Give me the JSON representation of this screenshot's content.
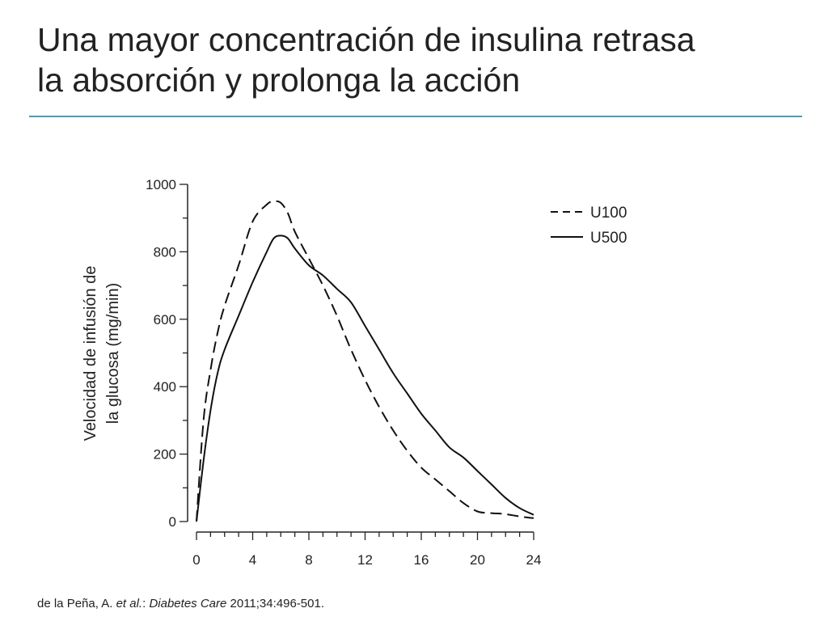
{
  "slide": {
    "title_line1": "Una mayor concentración de insulina retrasa",
    "title_line2": "la absorción y prolonga la acción",
    "accent_color": "#4e9bb2"
  },
  "citation": {
    "authors": "de la Peña, A. ",
    "etal": "et al.",
    "sep": ": ",
    "journal": "Diabetes Care",
    "details": " 2011;34:496-501."
  },
  "chart_data": {
    "type": "line",
    "title": "",
    "xlabel": "",
    "ylabel_line1": "Velocidad de infusión de",
    "ylabel_line2": "la glucosa (mg/min)",
    "xlim": [
      0,
      24
    ],
    "ylim": [
      0,
      1000
    ],
    "x_ticks": [
      0,
      4,
      8,
      12,
      16,
      20,
      24
    ],
    "y_ticks": [
      0,
      200,
      400,
      600,
      800,
      1000
    ],
    "x_minor_step": 1,
    "y_minor_step": 100,
    "grid": false,
    "legend_position": "top-right",
    "series": [
      {
        "name": "U100",
        "style": "dashed",
        "x": [
          0,
          0.5,
          1,
          1.5,
          2,
          3,
          4,
          5,
          5.5,
          6,
          6.5,
          7,
          8,
          9,
          10,
          11,
          12,
          13,
          14,
          15,
          16,
          17,
          18,
          19,
          20,
          21,
          22,
          23,
          24
        ],
        "y": [
          0,
          300,
          450,
          560,
          640,
          760,
          890,
          940,
          950,
          945,
          915,
          860,
          780,
          700,
          610,
          510,
          420,
          340,
          270,
          210,
          160,
          125,
          90,
          55,
          30,
          25,
          22,
          15,
          10
        ]
      },
      {
        "name": "U500",
        "style": "solid",
        "x": [
          0,
          0.5,
          1,
          1.5,
          2,
          3,
          4,
          5,
          5.5,
          6,
          6.5,
          7,
          8,
          9,
          10,
          11,
          12,
          13,
          14,
          15,
          16,
          17,
          18,
          19,
          20,
          21,
          22,
          23,
          24
        ],
        "y": [
          0,
          180,
          330,
          440,
          510,
          610,
          710,
          800,
          840,
          848,
          840,
          810,
          760,
          730,
          690,
          650,
          580,
          510,
          440,
          380,
          320,
          270,
          220,
          190,
          150,
          110,
          70,
          40,
          20
        ]
      }
    ]
  }
}
